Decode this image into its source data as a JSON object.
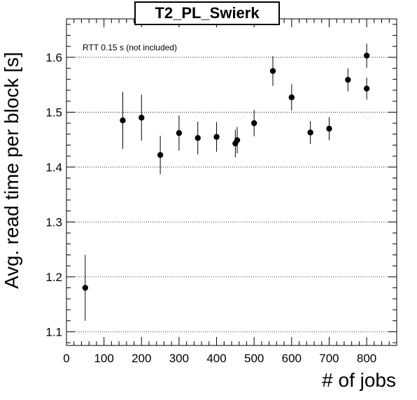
{
  "chart_data": {
    "type": "scatter",
    "title": "T2_PL_Swierk",
    "xlabel": "# of jobs",
    "ylabel": "Avg. read time per block [s]",
    "annotation": "RTT 0.15 s (not included)",
    "xlim": [
      0,
      880
    ],
    "ylim": [
      1.075,
      1.67
    ],
    "x_ticks": [
      0,
      100,
      200,
      300,
      400,
      500,
      600,
      700,
      800
    ],
    "y_ticks": [
      1.1,
      1.2,
      1.3,
      1.4,
      1.5,
      1.6
    ],
    "y_tick_labels": [
      "1.1",
      "1.2",
      "1.3",
      "1.4",
      "1.5",
      "1.6"
    ],
    "grid": "horizontal dotted",
    "points": [
      {
        "x": 50,
        "y": 1.18,
        "err": 0.06
      },
      {
        "x": 150,
        "y": 1.485,
        "err": 0.052
      },
      {
        "x": 200,
        "y": 1.49,
        "err": 0.042
      },
      {
        "x": 250,
        "y": 1.422,
        "err": 0.035
      },
      {
        "x": 300,
        "y": 1.462,
        "err": 0.032
      },
      {
        "x": 350,
        "y": 1.453,
        "err": 0.03
      },
      {
        "x": 400,
        "y": 1.455,
        "err": 0.027
      },
      {
        "x": 450,
        "y": 1.443,
        "err": 0.025
      },
      {
        "x": 455,
        "y": 1.449,
        "err": 0.024
      },
      {
        "x": 500,
        "y": 1.48,
        "err": 0.024
      },
      {
        "x": 550,
        "y": 1.575,
        "err": 0.027
      },
      {
        "x": 600,
        "y": 1.527,
        "err": 0.024
      },
      {
        "x": 650,
        "y": 1.463,
        "err": 0.021
      },
      {
        "x": 700,
        "y": 1.47,
        "err": 0.021
      },
      {
        "x": 750,
        "y": 1.559,
        "err": 0.021
      },
      {
        "x": 800,
        "y": 1.543,
        "err": 0.02
      },
      {
        "x": 800,
        "y": 1.603,
        "err": 0.022
      }
    ],
    "marker_color": "#000000"
  }
}
